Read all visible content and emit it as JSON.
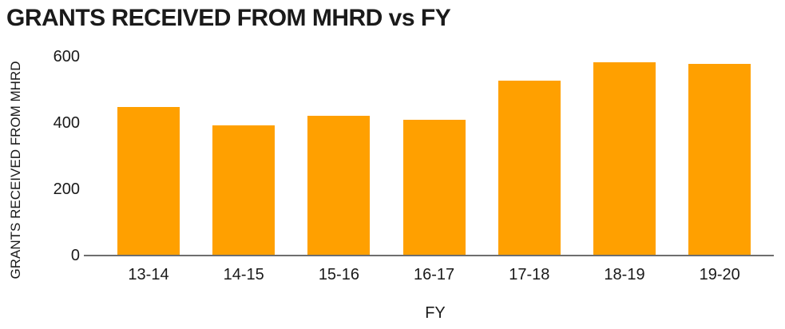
{
  "chart_data": {
    "type": "bar",
    "title": "GRANTS RECEIVED FROM MHRD vs FY",
    "xlabel": "FY",
    "ylabel": "GRANTS RECEIVED FROM MHRD",
    "categories": [
      "13-14",
      "14-15",
      "15-16",
      "16-17",
      "17-18",
      "18-19",
      "19-20"
    ],
    "values": [
      445,
      390,
      420,
      407,
      525,
      580,
      575
    ],
    "yticks": [
      0,
      200,
      400,
      600
    ],
    "ylim": [
      0,
      620
    ],
    "grid": false,
    "legend": "none",
    "bar_color": "#FFA000",
    "axis_line_color": "#6e6e6e",
    "text_color": "#1a1a1a"
  }
}
